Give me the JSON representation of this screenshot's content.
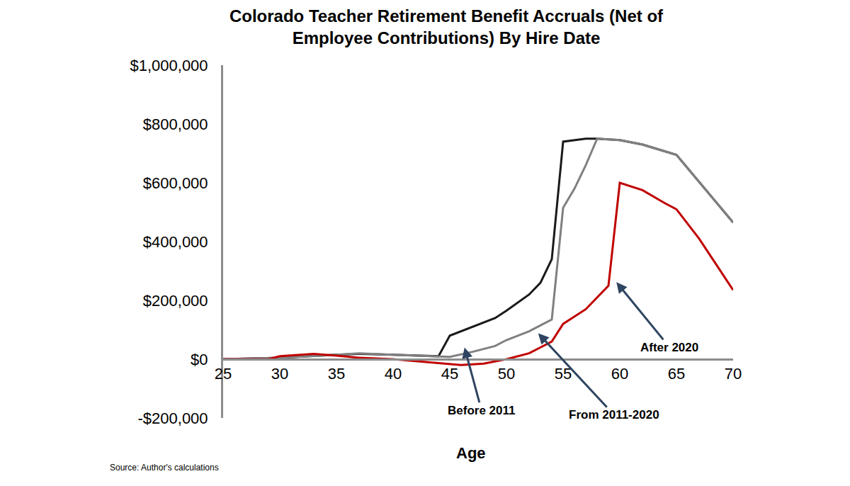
{
  "chart_data": {
    "type": "line",
    "title": "Colorado Teacher Retirement Benefit Accruals (Net of\nEmployee Contributions) By Hire Date",
    "x_label": "Age",
    "source": "Source: Author's calculations",
    "grid": false,
    "xlim": [
      25,
      70
    ],
    "xticks": [
      25,
      30,
      35,
      40,
      45,
      50,
      55,
      60,
      65,
      70
    ],
    "ylim": [
      -200000,
      1000000
    ],
    "yticks": [
      {
        "value": -200000,
        "label": "-$200,000"
      },
      {
        "value": 0,
        "label": "$0"
      },
      {
        "value": 200000,
        "label": "$200,000"
      },
      {
        "value": 400000,
        "label": "$400,000"
      },
      {
        "value": 600000,
        "label": "$600,000"
      },
      {
        "value": 800000,
        "label": "$800,000"
      },
      {
        "value": 1000000,
        "label": "$1,000,000"
      }
    ],
    "series": [
      {
        "name": "Before 2011",
        "color": "#1a1a1a",
        "x": [
          25,
          30,
          35,
          37,
          40,
          44,
          45,
          47,
          49,
          50,
          52,
          53,
          54,
          55,
          57,
          58,
          60,
          62,
          65,
          70
        ],
        "values": [
          0,
          5000,
          15000,
          18000,
          15000,
          10000,
          80000,
          110000,
          140000,
          165000,
          220000,
          260000,
          340000,
          740000,
          750000,
          750000,
          745000,
          730000,
          695000,
          465000
        ]
      },
      {
        "name": "From 2011-2020",
        "color": "#808080",
        "x": [
          25,
          30,
          35,
          37,
          40,
          44,
          45,
          47,
          49,
          50,
          52,
          54,
          55,
          56,
          57,
          58,
          60,
          62,
          65,
          70
        ],
        "values": [
          0,
          5000,
          15000,
          20000,
          15000,
          10000,
          8000,
          25000,
          45000,
          65000,
          95000,
          135000,
          515000,
          580000,
          660000,
          750000,
          745000,
          730000,
          695000,
          465000
        ]
      },
      {
        "name": "After 2020",
        "color": "#c00000",
        "x": [
          25,
          29,
          30,
          33,
          35,
          37,
          40,
          43,
          46,
          48,
          50,
          52,
          54,
          55,
          57,
          59,
          60,
          62,
          64,
          65,
          67,
          70
        ],
        "values": [
          0,
          0,
          10000,
          18000,
          12000,
          5000,
          0,
          -10000,
          -20000,
          -15000,
          0,
          20000,
          60000,
          120000,
          170000,
          250000,
          600000,
          575000,
          530000,
          510000,
          410000,
          235000
        ]
      }
    ]
  }
}
